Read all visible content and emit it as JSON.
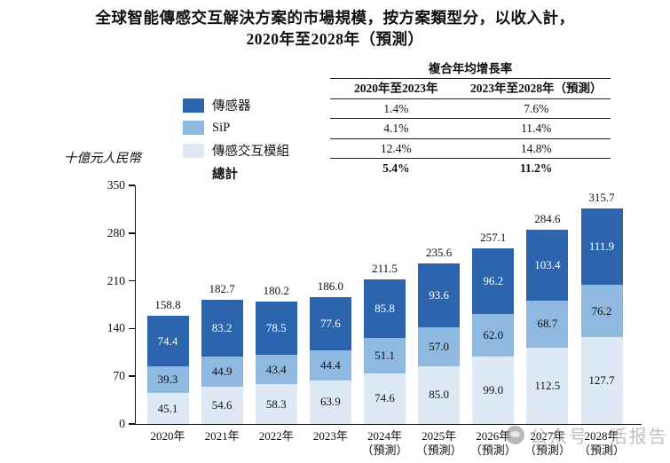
{
  "title": {
    "line1": "全球智能傳感交互解決方案的市場規模，按方案類型分，以收入計，",
    "line2": "2020年至2028年（預測）"
  },
  "unit_label": "十億元人民幣",
  "legend": {
    "items": [
      {
        "label": "傳感器",
        "color": "#2c65ad"
      },
      {
        "label": "SiP",
        "color": "#8fb9e0"
      },
      {
        "label": "傳感交互模組",
        "color": "#ddeaf6"
      }
    ],
    "total_label": "總計"
  },
  "cagr_table": {
    "title": "複合年均增長率",
    "columns": [
      "2020年至2023年",
      "2023年至2028年（預測）"
    ],
    "rows": [
      [
        "1.4%",
        "7.6%"
      ],
      [
        "4.1%",
        "11.4%"
      ],
      [
        "12.4%",
        "14.8%"
      ]
    ],
    "total": [
      "5.4%",
      "11.2%"
    ]
  },
  "chart_data": {
    "type": "bar",
    "stacked": true,
    "title": "全球智能傳感交互解決方案的市場規模，按方案類型分，以收入計，2020年至2028年（預測）",
    "ylabel": "十億元人民幣",
    "ylim": [
      0,
      350
    ],
    "yticks": [
      0,
      70,
      140,
      210,
      280,
      350
    ],
    "grid": false,
    "legend_position": "upper-left",
    "categories": [
      {
        "label": "2020年",
        "sublabel": ""
      },
      {
        "label": "2021年",
        "sublabel": ""
      },
      {
        "label": "2022年",
        "sublabel": ""
      },
      {
        "label": "2023年",
        "sublabel": ""
      },
      {
        "label": "2024年",
        "sublabel": "（預測）"
      },
      {
        "label": "2025年",
        "sublabel": "（預測）"
      },
      {
        "label": "2026年",
        "sublabel": "（預測）"
      },
      {
        "label": "2027年",
        "sublabel": "（預測）"
      },
      {
        "label": "2028年",
        "sublabel": "（預測）"
      }
    ],
    "series": [
      {
        "name": "傳感器",
        "color": "#2c65ad",
        "label_color": "#ffffff",
        "values": [
          74.4,
          83.2,
          78.5,
          77.6,
          85.8,
          93.6,
          96.2,
          103.4,
          111.9
        ]
      },
      {
        "name": "SiP",
        "color": "#8fb9e0",
        "label_color": "#111111",
        "values": [
          39.3,
          44.9,
          43.4,
          44.4,
          51.1,
          57.0,
          62.0,
          68.7,
          76.2
        ]
      },
      {
        "name": "傳感交互模組",
        "color": "#ddeaf6",
        "label_color": "#111111",
        "values": [
          45.1,
          54.6,
          58.3,
          63.9,
          74.6,
          85.0,
          99.0,
          112.5,
          127.7
        ]
      }
    ],
    "totals": [
      158.8,
      182.7,
      180.2,
      186.0,
      211.5,
      235.6,
      257.1,
      284.6,
      315.7
    ]
  },
  "watermark": {
    "text": "公众号 · 活报告"
  }
}
